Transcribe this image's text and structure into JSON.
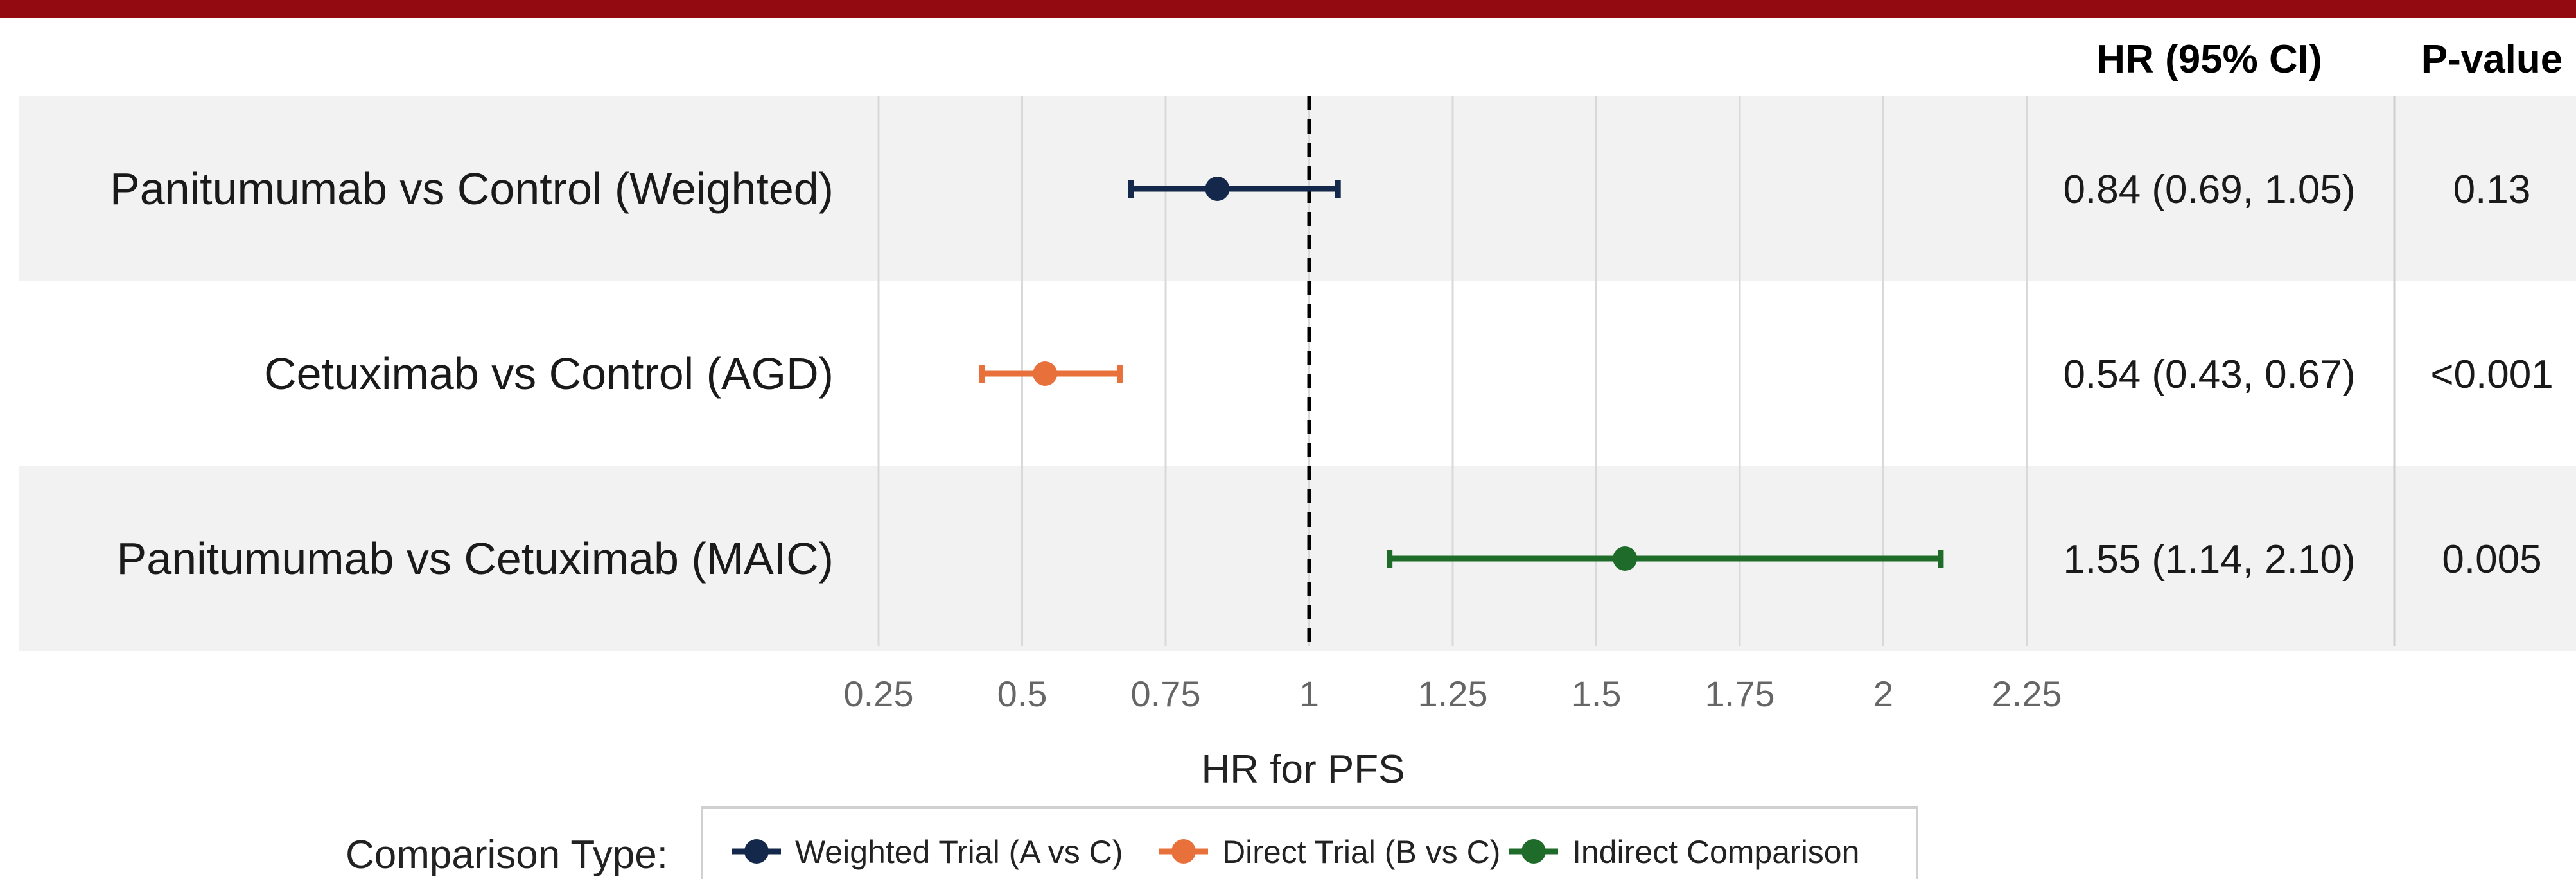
{
  "chart_data": {
    "type": "forest",
    "xlabel": "HR for PFS",
    "xlim": [
      0.25,
      2.25
    ],
    "xticks": [
      0.25,
      0.5,
      0.75,
      1,
      1.25,
      1.5,
      1.75,
      2,
      2.25
    ],
    "xtick_labels": [
      "0.25",
      "0.5",
      "0.75",
      "1",
      "1.25",
      "1.5",
      "1.75",
      "2",
      "2.25"
    ],
    "reference_line": 1,
    "grid": true,
    "columns": {
      "hr_header": "HR (95% CI)",
      "p_header": "P-value"
    },
    "rows": [
      {
        "label": "Panitumumab vs Control (Weighted)",
        "hr": 0.84,
        "lower": 0.69,
        "upper": 1.05,
        "hr_text": "0.84 (0.69, 1.05)",
        "p_text": "0.13",
        "series": "Weighted Trial (A vs C)"
      },
      {
        "label": "Cetuximab vs Control (AGD)",
        "hr": 0.54,
        "lower": 0.43,
        "upper": 0.67,
        "hr_text": "0.54 (0.43, 0.67)",
        "p_text": "<0.001",
        "series": "Direct Trial (B vs C)"
      },
      {
        "label": "Panitumumab vs Cetuximab (MAIC)",
        "hr": 1.55,
        "lower": 1.14,
        "upper": 2.1,
        "hr_text": "1.55 (1.14, 2.10)",
        "p_text": "0.005",
        "series": "Indirect Comparison"
      }
    ],
    "legend": {
      "title": "Comparison Type:",
      "placement": "bottom",
      "entries": [
        {
          "name": "Weighted Trial (A vs C)",
          "color": "#14284b"
        },
        {
          "name": "Direct Trial (B vs C)",
          "color": "#e8703a"
        },
        {
          "name": "Indirect Comparison",
          "color": "#1f6b2a"
        }
      ]
    },
    "colors": {
      "header_bar": "#930a10",
      "row_band": "#f2f2f2"
    }
  }
}
